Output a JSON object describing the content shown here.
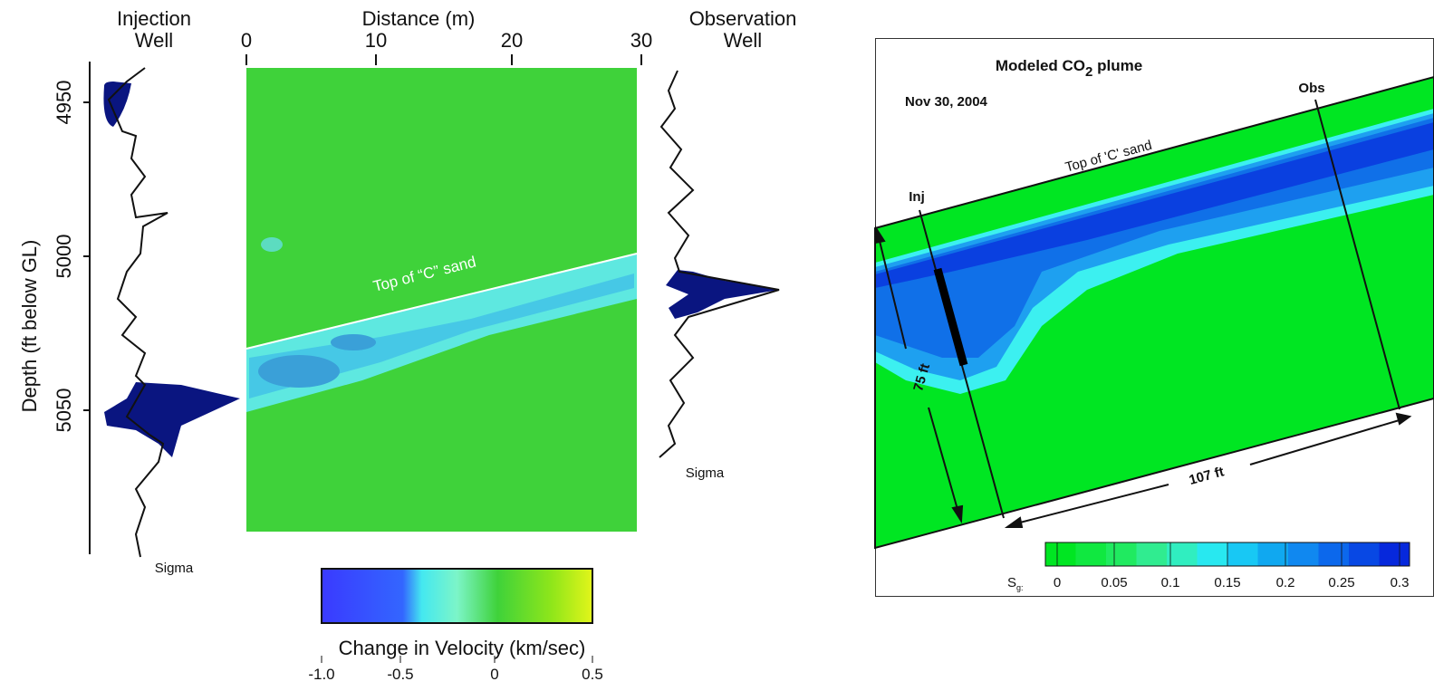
{
  "left_panel": {
    "injection_well_label": [
      "Injection",
      "Well"
    ],
    "observation_well_label": [
      "Observation",
      "Well"
    ],
    "x_axis_title": "Distance (m)",
    "x_ticks": [
      "0",
      "10",
      "20",
      "30"
    ],
    "y_axis_title": "Depth (ft below GL)",
    "y_ticks": [
      "4950",
      "5000",
      "5050"
    ],
    "sigma_labels": [
      "Sigma",
      "Sigma"
    ],
    "annotation": "Top of “C” sand",
    "colorbar_title": "Change in Velocity (km/sec)",
    "colorbar_ticks": [
      "-1.0",
      "-0.5",
      "0",
      "0.5"
    ]
  },
  "right_panel": {
    "title": [
      "Modeled CO",
      "2",
      " plume"
    ],
    "date": "Nov 30, 2004",
    "labels": {
      "obs": "Obs",
      "inj": "Inj",
      "top": "Top of 'C' sand",
      "thickness": "75 ft",
      "length": "107 ft"
    },
    "colorbar_label": [
      "S",
      "g:"
    ],
    "colorbar_ticks": [
      "0",
      "0.05",
      "0.1",
      "0.15",
      "0.2",
      "0.25",
      "0.3"
    ]
  }
}
